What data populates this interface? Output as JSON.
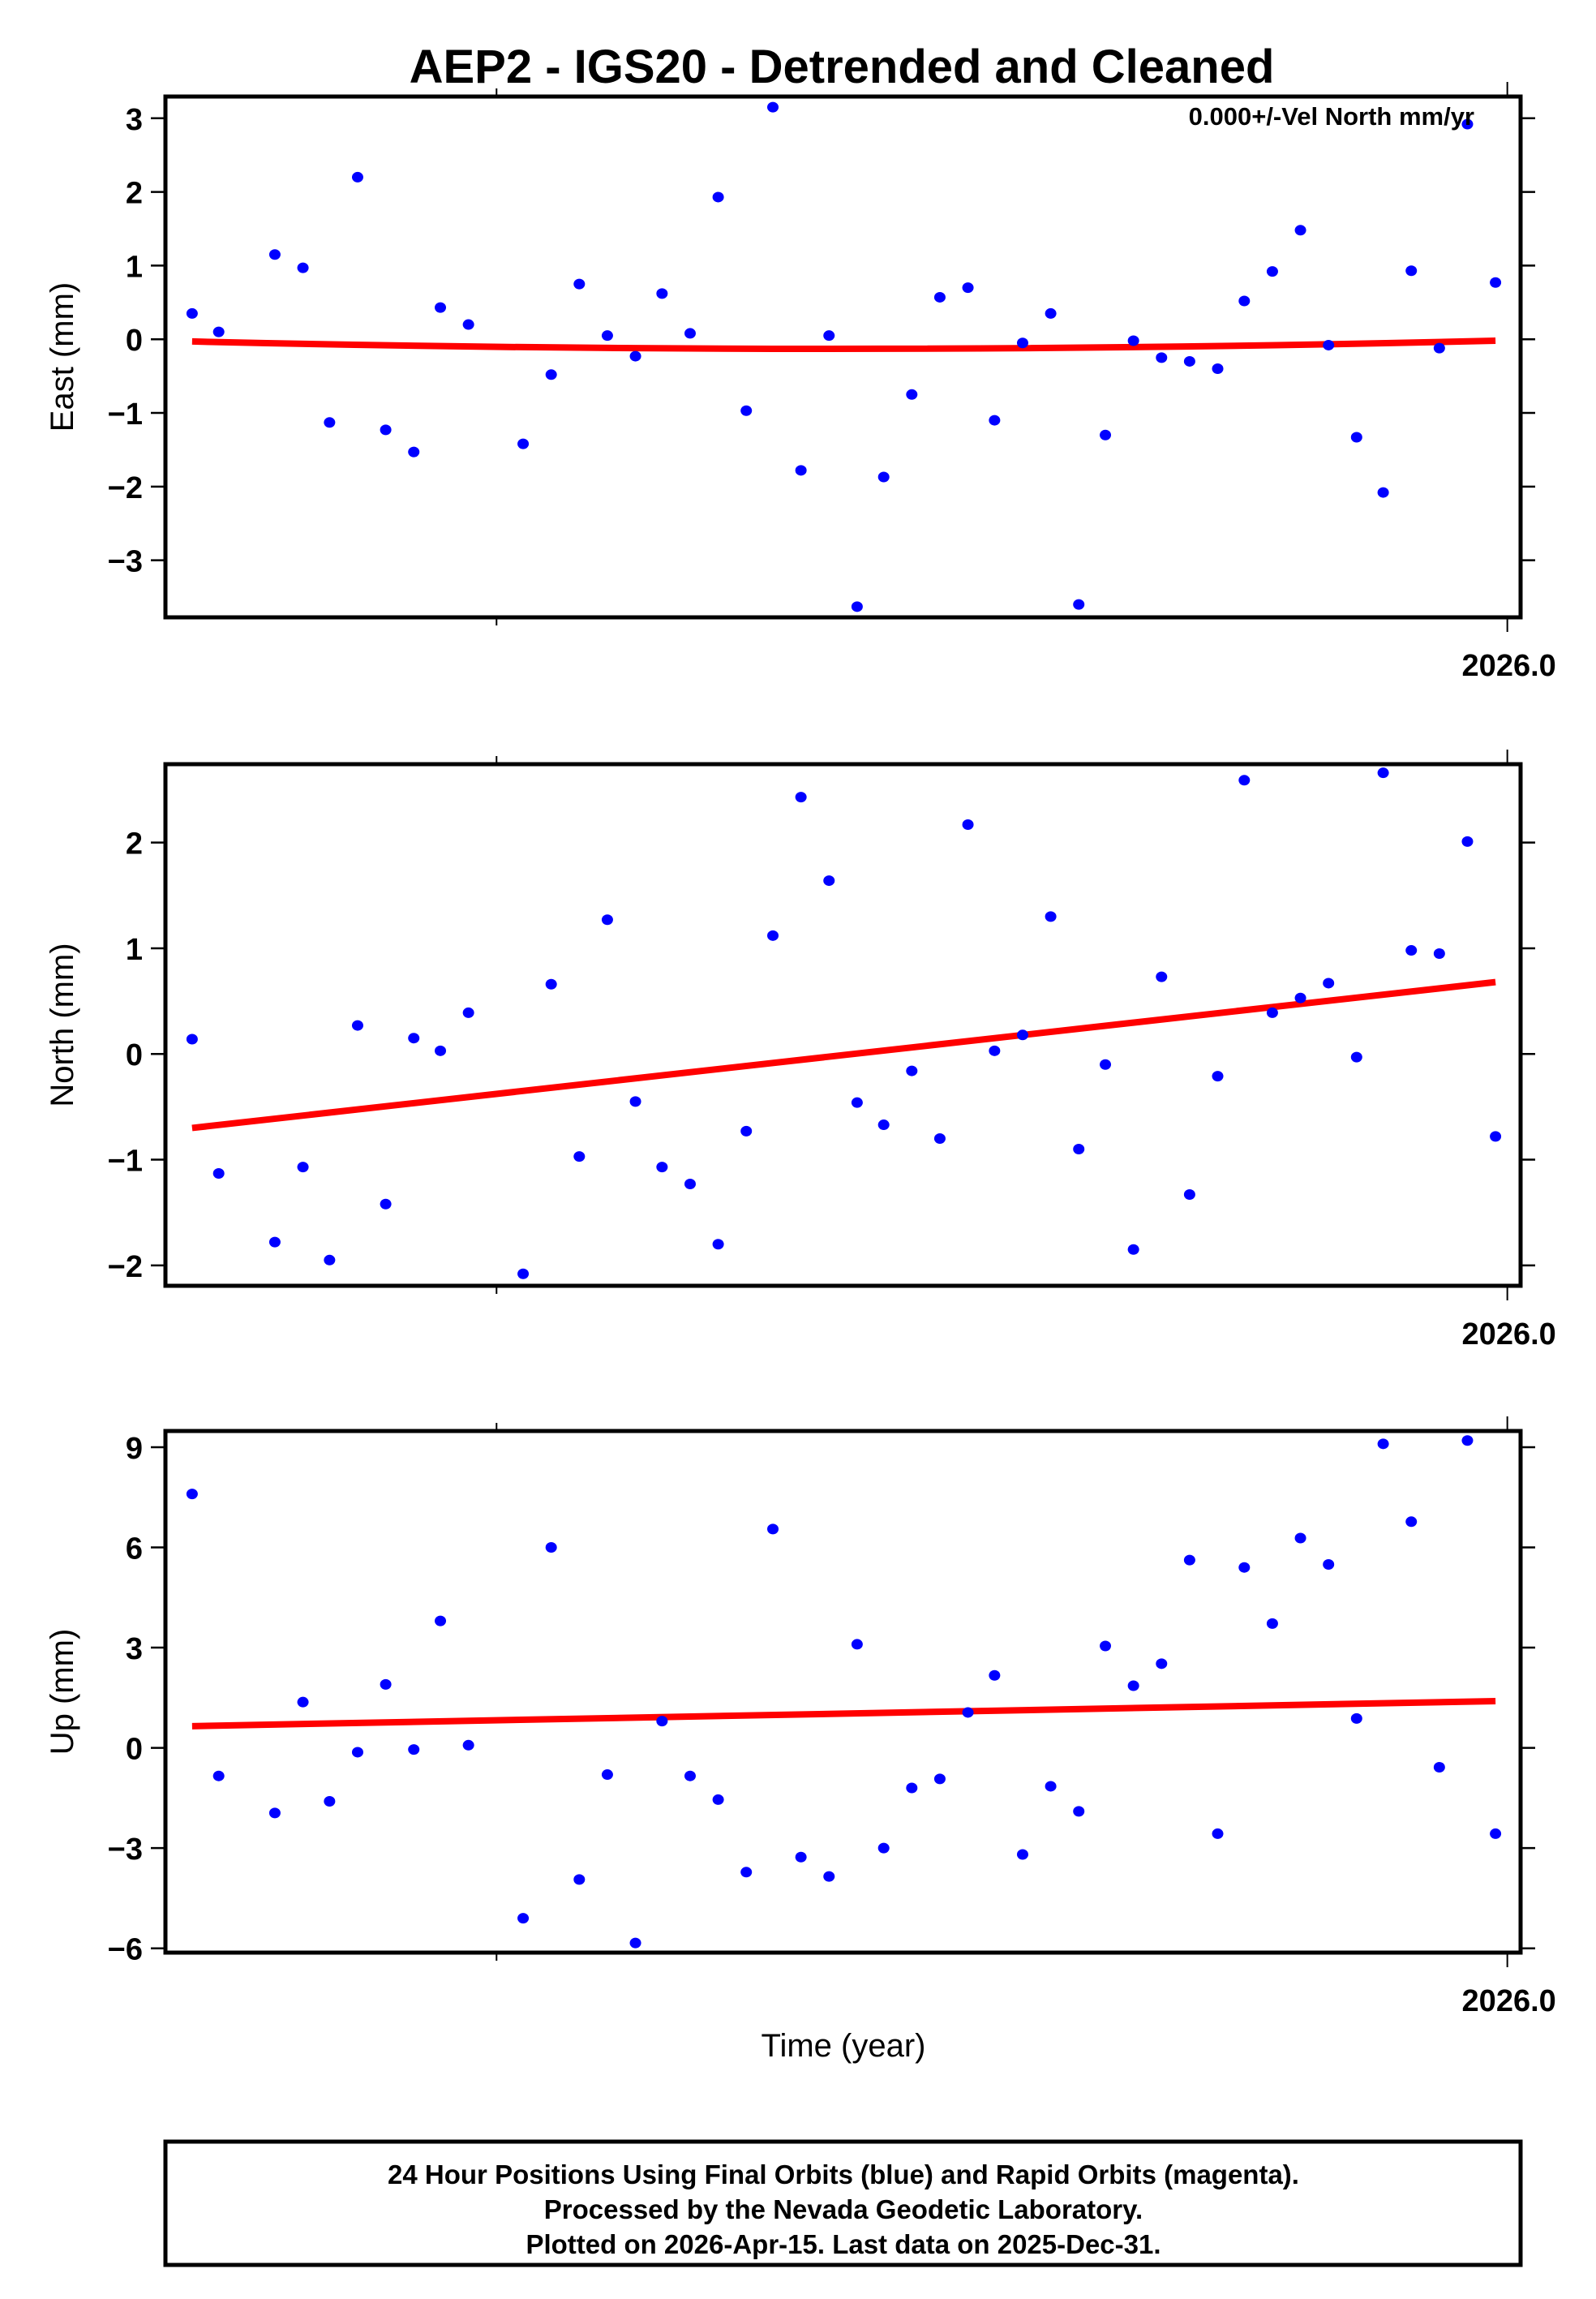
{
  "title": "AEP2 - IGS20 - Detrended and Cleaned",
  "annotation": "0.000+/-Vel North mm/yr",
  "xlabel": "Time (year)",
  "x_tick_label": "2026.0",
  "footer": {
    "line1": "24 Hour Positions Using Final Orbits (blue) and Rapid Orbits (magenta).",
    "line2": "Processed by the Nevada Geodetic Laboratory.",
    "line3": "Plotted on 2026-Apr-15. Last data on 2025-Dec-31."
  },
  "colors": {
    "points": "#0000ff",
    "fit": "#ff0000",
    "axes": "#000000"
  },
  "chart_data": [
    {
      "type": "scatter",
      "title": "AEP2 - IGS20 - Detrended and Cleaned",
      "panel": "East",
      "ylabel": "East (mm)",
      "xlabel": "",
      "ylim": [
        -3.8,
        3.3
      ],
      "yticks": [
        3,
        2,
        1,
        0,
        -1,
        -2,
        -3
      ],
      "x_tick_labels": [
        "2026.0"
      ],
      "annotation": "0.000+/-Vel North mm/yr",
      "grid": false,
      "series": [
        {
          "name": "Final Orbits (blue)",
          "values": [
            0.35,
            0.1,
            1.15,
            0.97,
            -1.13,
            2.2,
            -1.23,
            -1.53,
            0.43,
            0.2,
            -1.42,
            -0.48,
            0.75,
            0.05,
            -0.23,
            0.62,
            0.08,
            1.93,
            -0.97,
            3.15,
            -1.78,
            0.05,
            -3.63,
            -1.87,
            -0.75,
            0.57,
            0.7,
            -1.1,
            -0.05,
            0.35,
            -3.6,
            -1.3,
            -0.02,
            -0.25,
            -0.3,
            -0.4,
            0.52,
            0.92,
            1.48,
            -0.08,
            -1.33,
            -2.08,
            0.93,
            -0.12,
            2.92,
            0.77
          ]
        },
        {
          "name": "Fit",
          "values": [
            -0.03,
            -0.13,
            -0.02
          ]
        }
      ]
    },
    {
      "type": "scatter",
      "panel": "North",
      "ylabel": "North (mm)",
      "xlabel": "",
      "ylim": [
        -2.2,
        2.75
      ],
      "yticks": [
        2,
        1,
        0,
        -1,
        -2
      ],
      "x_tick_labels": [
        "2026.0"
      ],
      "grid": false,
      "series": [
        {
          "name": "Final Orbits (blue)",
          "values": [
            0.14,
            -1.13,
            -1.78,
            -1.07,
            -1.95,
            0.27,
            -1.42,
            0.15,
            0.03,
            0.39,
            -2.08,
            0.66,
            -0.97,
            1.27,
            -0.45,
            -1.07,
            -1.23,
            -1.8,
            -0.73,
            1.12,
            2.43,
            1.64,
            -0.46,
            -0.67,
            -0.16,
            -0.8,
            2.17,
            0.03,
            0.18,
            1.3,
            -0.9,
            -0.1,
            -1.85,
            0.73,
            -1.33,
            -0.21,
            2.59,
            0.39,
            0.53,
            0.67,
            -0.03,
            2.66,
            0.98,
            0.95,
            2.01,
            -0.78
          ]
        },
        {
          "name": "Fit",
          "values": [
            -0.7,
            0.68
          ]
        }
      ]
    },
    {
      "type": "scatter",
      "panel": "Up",
      "ylabel": "Up (mm)",
      "xlabel": "Time (year)",
      "ylim": [
        -6.3,
        9.5
      ],
      "yticks": [
        9,
        6,
        3,
        0,
        -3,
        -6
      ],
      "x_tick_labels": [
        "2026.0"
      ],
      "grid": false,
      "series": [
        {
          "name": "Final Orbits (blue)",
          "values": [
            7.6,
            -0.84,
            -1.95,
            1.37,
            -1.6,
            -0.13,
            1.9,
            -0.05,
            3.8,
            0.08,
            -5.1,
            6.0,
            -3.94,
            -0.8,
            -5.84,
            0.8,
            -0.84,
            -1.55,
            -3.72,
            6.55,
            -3.27,
            -3.85,
            3.1,
            -3.0,
            -1.2,
            -0.93,
            1.06,
            2.17,
            -3.19,
            -1.15,
            -1.9,
            3.05,
            1.86,
            2.52,
            5.62,
            -2.57,
            5.4,
            3.72,
            6.28,
            5.49,
            0.88,
            9.1,
            6.77,
            -0.58,
            9.2,
            -2.57
          ]
        },
        {
          "name": "Fit",
          "values": [
            0.65,
            1.4
          ]
        }
      ]
    }
  ],
  "point_x_overview": [
    130,
    148,
    186,
    205,
    223,
    242,
    261,
    280,
    298,
    317,
    354,
    373,
    392,
    411,
    430,
    448,
    467,
    486,
    505,
    523,
    542,
    561,
    580,
    598,
    617,
    636,
    655,
    673,
    692,
    711,
    730,
    748,
    767,
    786,
    805,
    824,
    842,
    861,
    880,
    899,
    918,
    936,
    955,
    974,
    993,
    1012
  ]
}
